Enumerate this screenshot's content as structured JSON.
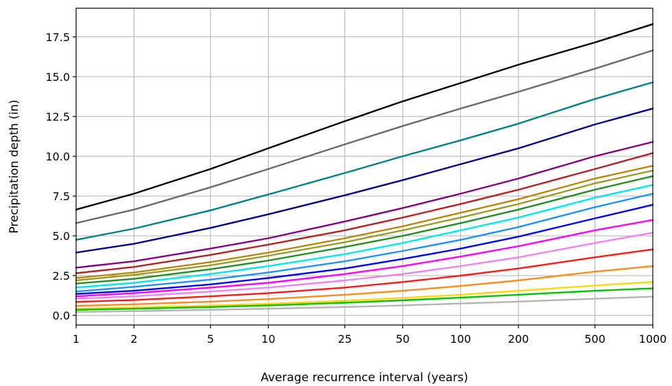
{
  "chart_data": {
    "type": "line",
    "title": "",
    "xlabel": "Average recurrence interval (years)",
    "ylabel": "Precipitation depth (in)",
    "x_scale": "log",
    "x": [
      1,
      2,
      5,
      10,
      25,
      50,
      100,
      200,
      500,
      1000
    ],
    "x_tick_labels": [
      "1",
      "2",
      "5",
      "10",
      "25",
      "50",
      "100",
      "200",
      "500",
      "1000"
    ],
    "xlim": [
      1,
      1000
    ],
    "ylim": [
      -0.6,
      19.3
    ],
    "y_ticks": [
      0.0,
      2.5,
      5.0,
      7.5,
      10.0,
      12.5,
      15.0,
      17.5
    ],
    "y_tick_labels": [
      "0.0",
      "2.5",
      "5.0",
      "7.5",
      "10.0",
      "12.5",
      "15.0",
      "17.5"
    ],
    "grid": true,
    "legend": "none",
    "series": [
      {
        "color": "#000000",
        "values": [
          6.65,
          7.65,
          9.2,
          10.5,
          12.2,
          13.45,
          14.6,
          15.75,
          17.15,
          18.3
        ]
      },
      {
        "color": "#696969",
        "values": [
          5.8,
          6.65,
          8.05,
          9.2,
          10.75,
          11.9,
          13.0,
          14.05,
          15.5,
          16.65
        ]
      },
      {
        "color": "#008080",
        "values": [
          4.75,
          5.45,
          6.6,
          7.6,
          8.95,
          10.0,
          11.0,
          12.05,
          13.6,
          14.65
        ]
      },
      {
        "color": "#00008b",
        "values": [
          3.95,
          4.5,
          5.5,
          6.35,
          7.55,
          8.5,
          9.5,
          10.5,
          12.0,
          13.0
        ]
      },
      {
        "color": "#800080",
        "values": [
          3.0,
          3.4,
          4.2,
          4.85,
          5.9,
          6.75,
          7.65,
          8.6,
          10.0,
          10.9
        ]
      },
      {
        "color": "#b22222",
        "values": [
          2.65,
          3.05,
          3.8,
          4.45,
          5.35,
          6.15,
          7.0,
          7.9,
          9.2,
          10.2
        ]
      },
      {
        "color": "#b8860b",
        "values": [
          2.35,
          2.7,
          3.35,
          3.95,
          4.85,
          5.6,
          6.45,
          7.3,
          8.6,
          9.4
        ]
      },
      {
        "color": "#9a9a2a",
        "values": [
          2.2,
          2.55,
          3.15,
          3.75,
          4.6,
          5.35,
          6.15,
          7.0,
          8.3,
          9.1
        ]
      },
      {
        "color": "#228b22",
        "values": [
          2.0,
          2.3,
          2.9,
          3.45,
          4.3,
          5.0,
          5.8,
          6.65,
          7.9,
          8.75
        ]
      },
      {
        "color": "#00e5ee",
        "values": [
          1.75,
          2.05,
          2.6,
          3.1,
          3.85,
          4.55,
          5.35,
          6.15,
          7.4,
          8.2
        ]
      },
      {
        "color": "#1e90ff",
        "values": [
          1.5,
          1.8,
          2.25,
          2.7,
          3.4,
          4.05,
          4.75,
          5.55,
          6.8,
          7.65
        ]
      },
      {
        "color": "#0000ff",
        "values": [
          1.35,
          1.55,
          1.95,
          2.35,
          2.95,
          3.55,
          4.2,
          4.95,
          6.1,
          6.95
        ]
      },
      {
        "color": "#ff00ff",
        "values": [
          1.2,
          1.4,
          1.75,
          2.05,
          2.6,
          3.1,
          3.7,
          4.35,
          5.35,
          6.0
        ]
      },
      {
        "color": "#ee82ee",
        "values": [
          1.05,
          1.2,
          1.5,
          1.75,
          2.2,
          2.6,
          3.1,
          3.65,
          4.55,
          5.2
        ]
      },
      {
        "color": "#ff1a1a",
        "values": [
          0.85,
          0.97,
          1.2,
          1.4,
          1.75,
          2.1,
          2.5,
          2.95,
          3.65,
          4.15
        ]
      },
      {
        "color": "#ff8c1a",
        "values": [
          0.6,
          0.7,
          0.87,
          1.03,
          1.3,
          1.55,
          1.85,
          2.2,
          2.75,
          3.1
        ]
      },
      {
        "color": "#ffd700",
        "values": [
          0.42,
          0.5,
          0.62,
          0.73,
          0.92,
          1.1,
          1.3,
          1.55,
          1.88,
          2.1
        ]
      },
      {
        "color": "#00c000",
        "values": [
          0.35,
          0.42,
          0.53,
          0.63,
          0.8,
          0.95,
          1.12,
          1.3,
          1.55,
          1.7
        ]
      },
      {
        "color": "#b4b4b4",
        "values": [
          0.22,
          0.27,
          0.35,
          0.42,
          0.53,
          0.63,
          0.75,
          0.87,
          1.05,
          1.18
        ]
      }
    ]
  }
}
